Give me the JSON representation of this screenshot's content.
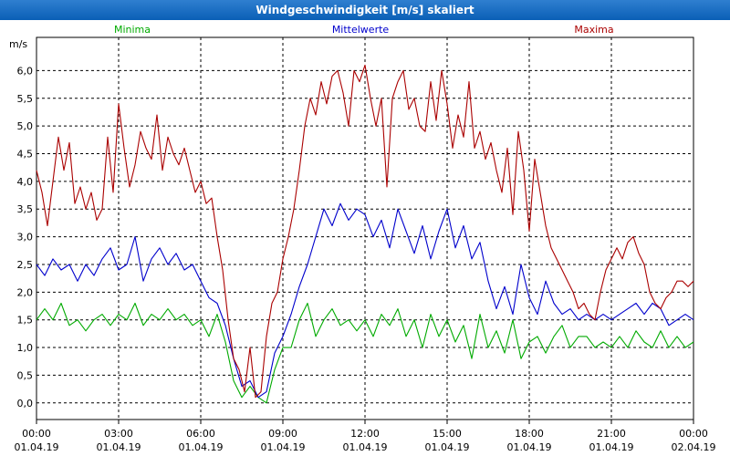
{
  "window": {
    "title": "Windgeschwindigkeit [m/s] skaliert"
  },
  "chart_data": {
    "type": "line",
    "title": "Windgeschwindigkeit [m/s] skaliert",
    "ylabel": "m/s",
    "xlabel": "",
    "ylim": [
      -0.3,
      6.6
    ],
    "grid": true,
    "yticks": [
      "0,0",
      "0,5",
      "1,0",
      "1,5",
      "2,0",
      "2,5",
      "3,0",
      "3,5",
      "4,0",
      "4,5",
      "5,0",
      "5,5",
      "6,0"
    ],
    "ytick_values": [
      0,
      0.5,
      1,
      1.5,
      2,
      2.5,
      3,
      3.5,
      4,
      4.5,
      5,
      5.5,
      6
    ],
    "xticks": [
      {
        "time": "00:00",
        "date": "01.04.19",
        "hour": 0
      },
      {
        "time": "03:00",
        "date": "01.04.19",
        "hour": 3
      },
      {
        "time": "06:00",
        "date": "01.04.19",
        "hour": 6
      },
      {
        "time": "09:00",
        "date": "01.04.19",
        "hour": 9
      },
      {
        "time": "12:00",
        "date": "01.04.19",
        "hour": 12
      },
      {
        "time": "15:00",
        "date": "01.04.19",
        "hour": 15
      },
      {
        "time": "18:00",
        "date": "01.04.19",
        "hour": 18
      },
      {
        "time": "21:00",
        "date": "01.04.19",
        "hour": 21
      },
      {
        "time": "00:00",
        "date": "02.04.19",
        "hour": 24
      }
    ],
    "xrange_hours": [
      0,
      24
    ],
    "series": [
      {
        "name": "Minima",
        "color": "#00aa00",
        "legend_anchor": "left",
        "points": [
          [
            0,
            1.5
          ],
          [
            0.3,
            1.7
          ],
          [
            0.6,
            1.5
          ],
          [
            0.9,
            1.8
          ],
          [
            1.2,
            1.4
          ],
          [
            1.5,
            1.5
          ],
          [
            1.8,
            1.3
          ],
          [
            2.1,
            1.5
          ],
          [
            2.4,
            1.6
          ],
          [
            2.7,
            1.4
          ],
          [
            3.0,
            1.6
          ],
          [
            3.3,
            1.5
          ],
          [
            3.6,
            1.8
          ],
          [
            3.9,
            1.4
          ],
          [
            4.2,
            1.6
          ],
          [
            4.5,
            1.5
          ],
          [
            4.8,
            1.7
          ],
          [
            5.1,
            1.5
          ],
          [
            5.4,
            1.6
          ],
          [
            5.7,
            1.4
          ],
          [
            6.0,
            1.5
          ],
          [
            6.3,
            1.2
          ],
          [
            6.6,
            1.6
          ],
          [
            6.9,
            1.1
          ],
          [
            7.2,
            0.4
          ],
          [
            7.5,
            0.1
          ],
          [
            7.8,
            0.3
          ],
          [
            8.1,
            0.1
          ],
          [
            8.4,
            0.0
          ],
          [
            8.7,
            0.6
          ],
          [
            9.0,
            1.0
          ],
          [
            9.3,
            1.0
          ],
          [
            9.6,
            1.5
          ],
          [
            9.9,
            1.8
          ],
          [
            10.2,
            1.2
          ],
          [
            10.5,
            1.5
          ],
          [
            10.8,
            1.7
          ],
          [
            11.1,
            1.4
          ],
          [
            11.4,
            1.5
          ],
          [
            11.7,
            1.3
          ],
          [
            12.0,
            1.5
          ],
          [
            12.3,
            1.2
          ],
          [
            12.6,
            1.6
          ],
          [
            12.9,
            1.4
          ],
          [
            13.2,
            1.7
          ],
          [
            13.5,
            1.2
          ],
          [
            13.8,
            1.5
          ],
          [
            14.1,
            1.0
          ],
          [
            14.4,
            1.6
          ],
          [
            14.7,
            1.2
          ],
          [
            15.0,
            1.5
          ],
          [
            15.3,
            1.1
          ],
          [
            15.6,
            1.4
          ],
          [
            15.9,
            0.8
          ],
          [
            16.2,
            1.6
          ],
          [
            16.5,
            1.0
          ],
          [
            16.8,
            1.3
          ],
          [
            17.1,
            0.9
          ],
          [
            17.4,
            1.5
          ],
          [
            17.7,
            0.8
          ],
          [
            18.0,
            1.1
          ],
          [
            18.3,
            1.2
          ],
          [
            18.6,
            0.9
          ],
          [
            18.9,
            1.2
          ],
          [
            19.2,
            1.4
          ],
          [
            19.5,
            1.0
          ],
          [
            19.8,
            1.2
          ],
          [
            20.1,
            1.2
          ],
          [
            20.4,
            1.0
          ],
          [
            20.7,
            1.1
          ],
          [
            21.0,
            1.0
          ],
          [
            21.3,
            1.2
          ],
          [
            21.6,
            1.0
          ],
          [
            21.9,
            1.3
          ],
          [
            22.2,
            1.1
          ],
          [
            22.5,
            1.0
          ],
          [
            22.8,
            1.3
          ],
          [
            23.1,
            1.0
          ],
          [
            23.4,
            1.2
          ],
          [
            23.7,
            1.0
          ],
          [
            24.0,
            1.1
          ]
        ]
      },
      {
        "name": "Mittelwerte",
        "color": "#0000cc",
        "legend_anchor": "center",
        "points": [
          [
            0,
            2.5
          ],
          [
            0.3,
            2.3
          ],
          [
            0.6,
            2.6
          ],
          [
            0.9,
            2.4
          ],
          [
            1.2,
            2.5
          ],
          [
            1.5,
            2.2
          ],
          [
            1.8,
            2.5
          ],
          [
            2.1,
            2.3
          ],
          [
            2.4,
            2.6
          ],
          [
            2.7,
            2.8
          ],
          [
            3.0,
            2.4
          ],
          [
            3.3,
            2.5
          ],
          [
            3.6,
            3.0
          ],
          [
            3.9,
            2.2
          ],
          [
            4.2,
            2.6
          ],
          [
            4.5,
            2.8
          ],
          [
            4.8,
            2.5
          ],
          [
            5.1,
            2.7
          ],
          [
            5.4,
            2.4
          ],
          [
            5.7,
            2.5
          ],
          [
            6.0,
            2.2
          ],
          [
            6.3,
            1.9
          ],
          [
            6.6,
            1.8
          ],
          [
            6.9,
            1.4
          ],
          [
            7.2,
            0.8
          ],
          [
            7.5,
            0.3
          ],
          [
            7.8,
            0.4
          ],
          [
            8.1,
            0.1
          ],
          [
            8.4,
            0.2
          ],
          [
            8.7,
            0.9
          ],
          [
            9.0,
            1.2
          ],
          [
            9.3,
            1.6
          ],
          [
            9.6,
            2.1
          ],
          [
            9.9,
            2.5
          ],
          [
            10.2,
            3.0
          ],
          [
            10.5,
            3.5
          ],
          [
            10.8,
            3.2
          ],
          [
            11.1,
            3.6
          ],
          [
            11.4,
            3.3
          ],
          [
            11.7,
            3.5
          ],
          [
            12.0,
            3.4
          ],
          [
            12.3,
            3.0
          ],
          [
            12.6,
            3.3
          ],
          [
            12.9,
            2.8
          ],
          [
            13.2,
            3.5
          ],
          [
            13.5,
            3.1
          ],
          [
            13.8,
            2.7
          ],
          [
            14.1,
            3.2
          ],
          [
            14.4,
            2.6
          ],
          [
            14.7,
            3.1
          ],
          [
            15.0,
            3.5
          ],
          [
            15.3,
            2.8
          ],
          [
            15.6,
            3.2
          ],
          [
            15.9,
            2.6
          ],
          [
            16.2,
            2.9
          ],
          [
            16.5,
            2.2
          ],
          [
            16.8,
            1.7
          ],
          [
            17.1,
            2.1
          ],
          [
            17.4,
            1.6
          ],
          [
            17.7,
            2.5
          ],
          [
            18.0,
            1.9
          ],
          [
            18.3,
            1.6
          ],
          [
            18.6,
            2.2
          ],
          [
            18.9,
            1.8
          ],
          [
            19.2,
            1.6
          ],
          [
            19.5,
            1.7
          ],
          [
            19.8,
            1.5
          ],
          [
            20.1,
            1.6
          ],
          [
            20.4,
            1.5
          ],
          [
            20.7,
            1.6
          ],
          [
            21.0,
            1.5
          ],
          [
            21.3,
            1.6
          ],
          [
            21.6,
            1.7
          ],
          [
            21.9,
            1.8
          ],
          [
            22.2,
            1.6
          ],
          [
            22.5,
            1.8
          ],
          [
            22.8,
            1.7
          ],
          [
            23.1,
            1.4
          ],
          [
            23.4,
            1.5
          ],
          [
            23.7,
            1.6
          ],
          [
            24.0,
            1.5
          ]
        ]
      },
      {
        "name": "Maxima",
        "color": "#aa0000",
        "legend_anchor": "right",
        "points": [
          [
            0,
            4.2
          ],
          [
            0.2,
            3.8
          ],
          [
            0.4,
            3.2
          ],
          [
            0.6,
            4.0
          ],
          [
            0.8,
            4.8
          ],
          [
            1.0,
            4.2
          ],
          [
            1.2,
            4.7
          ],
          [
            1.4,
            3.6
          ],
          [
            1.6,
            3.9
          ],
          [
            1.8,
            3.5
          ],
          [
            2.0,
            3.8
          ],
          [
            2.2,
            3.3
          ],
          [
            2.4,
            3.5
          ],
          [
            2.6,
            4.8
          ],
          [
            2.8,
            3.8
          ],
          [
            3.0,
            5.4
          ],
          [
            3.2,
            4.6
          ],
          [
            3.4,
            3.9
          ],
          [
            3.6,
            4.3
          ],
          [
            3.8,
            4.9
          ],
          [
            4.0,
            4.6
          ],
          [
            4.2,
            4.4
          ],
          [
            4.4,
            5.2
          ],
          [
            4.6,
            4.2
          ],
          [
            4.8,
            4.8
          ],
          [
            5.0,
            4.5
          ],
          [
            5.2,
            4.3
          ],
          [
            5.4,
            4.6
          ],
          [
            5.6,
            4.2
          ],
          [
            5.8,
            3.8
          ],
          [
            6.0,
            4.0
          ],
          [
            6.2,
            3.6
          ],
          [
            6.4,
            3.7
          ],
          [
            6.6,
            3.0
          ],
          [
            6.8,
            2.4
          ],
          [
            7.0,
            1.5
          ],
          [
            7.2,
            0.8
          ],
          [
            7.4,
            0.6
          ],
          [
            7.6,
            0.2
          ],
          [
            7.8,
            1.0
          ],
          [
            8.0,
            0.1
          ],
          [
            8.2,
            0.2
          ],
          [
            8.4,
            1.2
          ],
          [
            8.6,
            1.8
          ],
          [
            8.8,
            2.0
          ],
          [
            9.0,
            2.6
          ],
          [
            9.2,
            3.0
          ],
          [
            9.4,
            3.5
          ],
          [
            9.6,
            4.2
          ],
          [
            9.8,
            5.0
          ],
          [
            10.0,
            5.5
          ],
          [
            10.2,
            5.2
          ],
          [
            10.4,
            5.8
          ],
          [
            10.6,
            5.4
          ],
          [
            10.8,
            5.9
          ],
          [
            11.0,
            6.0
          ],
          [
            11.2,
            5.6
          ],
          [
            11.4,
            5.0
          ],
          [
            11.6,
            6.0
          ],
          [
            11.8,
            5.8
          ],
          [
            12.0,
            6.1
          ],
          [
            12.2,
            5.5
          ],
          [
            12.4,
            5.0
          ],
          [
            12.6,
            5.5
          ],
          [
            12.8,
            3.9
          ],
          [
            13.0,
            5.5
          ],
          [
            13.2,
            5.8
          ],
          [
            13.4,
            6.0
          ],
          [
            13.6,
            5.3
          ],
          [
            13.8,
            5.5
          ],
          [
            14.0,
            5.0
          ],
          [
            14.2,
            4.9
          ],
          [
            14.4,
            5.8
          ],
          [
            14.6,
            5.1
          ],
          [
            14.8,
            6.0
          ],
          [
            15.0,
            5.4
          ],
          [
            15.2,
            4.6
          ],
          [
            15.4,
            5.2
          ],
          [
            15.6,
            4.8
          ],
          [
            15.8,
            5.8
          ],
          [
            16.0,
            4.6
          ],
          [
            16.2,
            4.9
          ],
          [
            16.4,
            4.4
          ],
          [
            16.6,
            4.7
          ],
          [
            16.8,
            4.2
          ],
          [
            17.0,
            3.8
          ],
          [
            17.2,
            4.6
          ],
          [
            17.4,
            3.4
          ],
          [
            17.6,
            4.9
          ],
          [
            17.8,
            4.2
          ],
          [
            18.0,
            3.1
          ],
          [
            18.2,
            4.4
          ],
          [
            18.4,
            3.8
          ],
          [
            18.6,
            3.2
          ],
          [
            18.8,
            2.8
          ],
          [
            19.0,
            2.6
          ],
          [
            19.2,
            2.4
          ],
          [
            19.4,
            2.2
          ],
          [
            19.6,
            2.0
          ],
          [
            19.8,
            1.7
          ],
          [
            20.0,
            1.8
          ],
          [
            20.2,
            1.6
          ],
          [
            20.4,
            1.5
          ],
          [
            20.6,
            2.0
          ],
          [
            20.8,
            2.4
          ],
          [
            21.0,
            2.6
          ],
          [
            21.2,
            2.8
          ],
          [
            21.4,
            2.6
          ],
          [
            21.6,
            2.9
          ],
          [
            21.8,
            3.0
          ],
          [
            22.0,
            2.7
          ],
          [
            22.2,
            2.5
          ],
          [
            22.4,
            2.0
          ],
          [
            22.6,
            1.8
          ],
          [
            22.8,
            1.7
          ],
          [
            23.0,
            1.9
          ],
          [
            23.2,
            2.0
          ],
          [
            23.4,
            2.2
          ],
          [
            23.6,
            2.2
          ],
          [
            23.8,
            2.1
          ],
          [
            24.0,
            2.2
          ]
        ]
      }
    ]
  }
}
